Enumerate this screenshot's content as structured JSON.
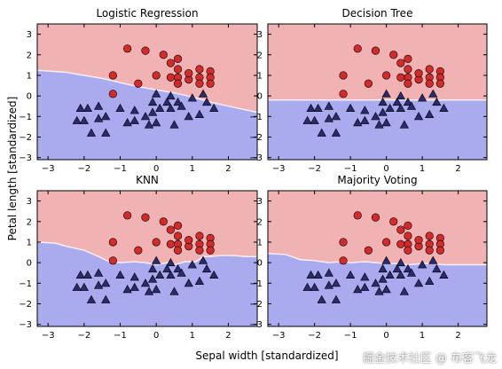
{
  "chart_data": {
    "type": "scatter",
    "xlabel": "Sepal width [standardized]",
    "ylabel": "Petal length [standardized]",
    "xlim": [
      -3.3,
      2.8
    ],
    "ylim": [
      -3.1,
      3.5
    ],
    "xticks": [
      -3,
      -2,
      -1,
      0,
      1,
      2
    ],
    "yticks": [
      -3,
      -2,
      -1,
      0,
      1,
      2,
      3
    ],
    "colors": {
      "class_0_region": "#aaaaee",
      "class_1_region": "#f0b2b2",
      "class_0_marker": "#2a2a6e",
      "class_1_marker": "#d42a2a"
    },
    "class_0_points": [
      [
        -2.1,
        -0.6
      ],
      [
        -1.9,
        -0.6
      ],
      [
        -1.6,
        -0.5
      ],
      [
        -2.2,
        -1.2
      ],
      [
        -2.0,
        -1.2
      ],
      [
        -1.6,
        -1.1
      ],
      [
        -1.8,
        -1.8
      ],
      [
        -1.4,
        -1.8
      ],
      [
        -1.0,
        -0.6
      ],
      [
        -0.8,
        -1.3
      ],
      [
        -0.6,
        -1.2
      ],
      [
        -0.6,
        -0.7
      ],
      [
        -0.3,
        -1.0
      ],
      [
        -0.2,
        -1.4
      ],
      [
        -0.1,
        -0.8
      ],
      [
        -0.1,
        -0.3
      ],
      [
        0.0,
        -1.3
      ],
      [
        0.1,
        -0.6
      ],
      [
        0.0,
        0.1
      ],
      [
        0.3,
        -0.3
      ],
      [
        0.4,
        -0.6
      ],
      [
        0.5,
        -1.4
      ],
      [
        0.4,
        0.0
      ],
      [
        0.6,
        -0.3
      ],
      [
        0.7,
        -0.5
      ],
      [
        0.9,
        -1.0
      ],
      [
        1.2,
        -0.9
      ],
      [
        1.0,
        -0.1
      ],
      [
        1.3,
        0.1
      ],
      [
        1.4,
        -0.3
      ],
      [
        1.6,
        -0.6
      ],
      [
        -1.4,
        -1.0
      ]
    ],
    "class_1_points": [
      [
        -0.8,
        2.3
      ],
      [
        -0.3,
        2.2
      ],
      [
        0.2,
        2.0
      ],
      [
        0.4,
        1.6
      ],
      [
        0.6,
        1.8
      ],
      [
        0.6,
        1.3
      ],
      [
        0.6,
        0.9
      ],
      [
        0.9,
        0.8
      ],
      [
        0.6,
        0.6
      ],
      [
        0.9,
        1.1
      ],
      [
        1.2,
        1.3
      ],
      [
        1.2,
        0.9
      ],
      [
        1.5,
        1.2
      ],
      [
        1.5,
        0.9
      ],
      [
        1.2,
        0.6
      ],
      [
        1.5,
        0.6
      ],
      [
        0.4,
        0.9
      ],
      [
        -1.2,
        1.0
      ],
      [
        -0.5,
        0.6
      ],
      [
        0.0,
        1.0
      ],
      [
        -1.2,
        0.1
      ]
    ],
    "panels": [
      {
        "title": "Logistic Regression",
        "boundary": [
          [
            -3.3,
            1.25
          ],
          [
            -2.5,
            1.15
          ],
          [
            -2.0,
            1.0
          ],
          [
            -1.5,
            0.85
          ],
          [
            -1.0,
            0.65
          ],
          [
            -0.5,
            0.45
          ],
          [
            0.0,
            0.3
          ],
          [
            0.5,
            0.15
          ],
          [
            1.0,
            -0.05
          ],
          [
            1.5,
            -0.3
          ],
          [
            2.0,
            -0.5
          ],
          [
            2.8,
            -0.8
          ]
        ]
      },
      {
        "title": "Decision Tree",
        "boundary": [
          [
            -3.3,
            -0.2
          ],
          [
            2.8,
            -0.2
          ]
        ]
      },
      {
        "title": "KNN",
        "boundary": [
          [
            -3.3,
            1.0
          ],
          [
            -2.8,
            0.95
          ],
          [
            -2.5,
            0.8
          ],
          [
            -2.0,
            0.6
          ],
          [
            -1.6,
            0.3
          ],
          [
            -1.3,
            0.05
          ],
          [
            -1.0,
            0.0
          ],
          [
            -0.6,
            0.05
          ],
          [
            -0.3,
            0.0
          ],
          [
            0.0,
            -0.1
          ],
          [
            0.3,
            0.0
          ],
          [
            0.5,
            -0.1
          ],
          [
            0.8,
            0.05
          ],
          [
            1.1,
            0.05
          ],
          [
            1.3,
            0.3
          ],
          [
            1.5,
            0.3
          ],
          [
            1.8,
            0.35
          ],
          [
            2.1,
            0.35
          ],
          [
            2.5,
            0.3
          ],
          [
            2.8,
            0.3
          ]
        ]
      },
      {
        "title": "Majority Voting",
        "boundary": [
          [
            -3.3,
            0.45
          ],
          [
            -2.8,
            0.4
          ],
          [
            -2.4,
            0.15
          ],
          [
            -2.0,
            0.1
          ],
          [
            -1.6,
            0.0
          ],
          [
            -1.3,
            0.05
          ],
          [
            -1.0,
            0.0
          ],
          [
            -0.6,
            0.05
          ],
          [
            -0.3,
            0.0
          ],
          [
            0.0,
            -0.05
          ],
          [
            0.3,
            -0.05
          ],
          [
            0.6,
            -0.1
          ],
          [
            1.0,
            -0.05
          ],
          [
            1.3,
            -0.05
          ],
          [
            1.6,
            -0.1
          ],
          [
            2.0,
            -0.1
          ],
          [
            2.4,
            -0.1
          ],
          [
            2.8,
            -0.1
          ]
        ]
      }
    ]
  },
  "watermark": "掘金技术社区 @ 布客飞龙"
}
